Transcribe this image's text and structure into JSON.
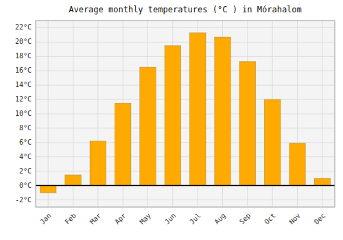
{
  "chart_data": {
    "type": "bar",
    "title": "Average monthly temperatures (°C ) in Mórahalom",
    "categories": [
      "Jan",
      "Feb",
      "Mar",
      "Apr",
      "May",
      "Jun",
      "Jul",
      "Aug",
      "Sep",
      "Oct",
      "Nov",
      "Dec"
    ],
    "values": [
      -1.0,
      1.5,
      6.2,
      11.5,
      16.5,
      19.5,
      21.3,
      20.7,
      17.3,
      12.0,
      5.9,
      1.0
    ],
    "color": "#FFAA00",
    "ylim": [
      -3,
      23
    ],
    "yticks": [
      {
        "value": -2,
        "label": "-2°C"
      },
      {
        "value": 0,
        "label": "0°C"
      },
      {
        "value": 2,
        "label": "2°C"
      },
      {
        "value": 4,
        "label": "4°C"
      },
      {
        "value": 6,
        "label": "6°C"
      },
      {
        "value": 8,
        "label": "8°C"
      },
      {
        "value": 10,
        "label": "10°C"
      },
      {
        "value": 12,
        "label": "12°C"
      },
      {
        "value": 14,
        "label": "14°C"
      },
      {
        "value": 16,
        "label": "16°C"
      },
      {
        "value": 18,
        "label": "18°C"
      },
      {
        "value": 20,
        "label": "20°C"
      },
      {
        "value": 22,
        "label": "22°C"
      }
    ],
    "grid": true
  }
}
